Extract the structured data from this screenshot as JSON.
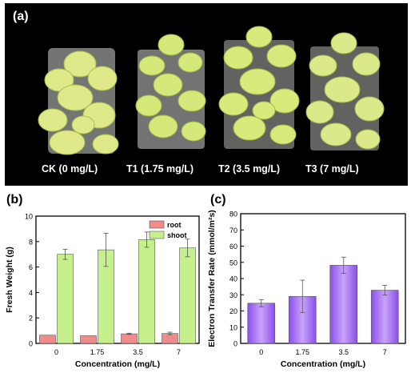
{
  "panel_a": {
    "tag": "(a)",
    "captions": [
      "CK (0 mg/L)",
      "T1 (1.75 mg/L)",
      "T2 (3.5 mg/L)",
      "T3 (7 mg/L)"
    ]
  },
  "chart_data": [
    {
      "panel_tag": "(b)",
      "type": "bar",
      "categories": [
        "0",
        "1.75",
        "3.5",
        "7"
      ],
      "series": [
        {
          "name": "root",
          "color": "#f08c8c",
          "values": [
            0.65,
            0.6,
            0.75,
            0.78
          ],
          "errors": [
            0.0,
            0.0,
            0.05,
            0.1
          ]
        },
        {
          "name": "shoot",
          "color": "#c6f08c",
          "values": [
            7.0,
            7.35,
            8.15,
            7.5
          ],
          "errors": [
            0.4,
            1.3,
            0.6,
            0.7
          ]
        }
      ],
      "xlabel": "Concentration (mg/L)",
      "ylabel": "Fresh Weight (g)",
      "ylim": [
        0,
        10
      ],
      "yticks": [
        "0",
        "2",
        "4",
        "6",
        "8",
        "10"
      ],
      "legend": "top-right",
      "grid": false
    },
    {
      "panel_tag": "(c)",
      "type": "bar",
      "categories": [
        "0",
        "1.75",
        "3.5",
        "7"
      ],
      "series": [
        {
          "color": "#a874f0",
          "values": [
            24.8,
            29.0,
            48.2,
            32.8
          ],
          "errors": [
            2.2,
            10.0,
            5.0,
            3.0
          ]
        }
      ],
      "xlabel": "Concentration (mg/L)",
      "ylabel": "Electron Transfer Rate (mmol/m²s)",
      "ylim": [
        0,
        80
      ],
      "yticks": [
        "0",
        "10",
        "20",
        "30",
        "40",
        "50",
        "60",
        "70",
        "80"
      ],
      "grid": false
    }
  ]
}
